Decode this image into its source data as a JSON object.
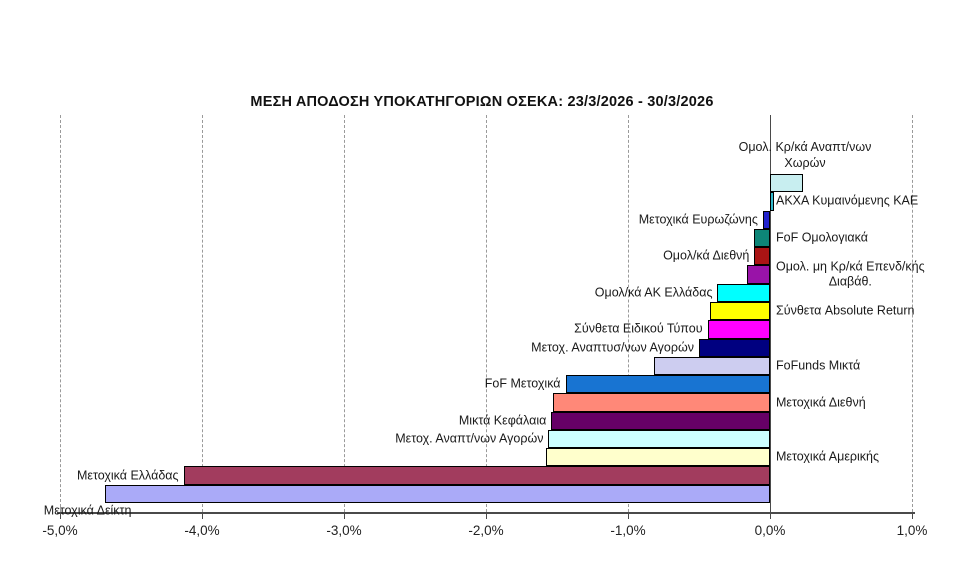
{
  "title": "ΜΕΣΗ ΑΠΟΔΟΣΗ ΥΠΟΚΑΤΗΓΟΡΙΩΝ ΟΣΕΚΑ: 23/3/2026 - 30/3/2026",
  "chart_data": {
    "type": "bar",
    "orientation": "horizontal",
    "title": "ΜΕΣΗ ΑΠΟΔΟΣΗ ΥΠΟΚΑΤΗΓΟΡΙΩΝ ΟΣΕΚΑ: 23/3/2026 - 30/3/2026",
    "value_unit": "%",
    "xlim": [
      -5.0,
      1.0
    ],
    "xticks": [
      -5,
      -4,
      -3,
      -2,
      -1,
      0,
      1
    ],
    "xtick_labels": [
      "-5,0%",
      "-4,0%",
      "-3,0%",
      "-2,0%",
      "-1,0%",
      "0,0%",
      "1,0%"
    ],
    "grid": "vertical-dashed",
    "legend": "none",
    "bars": [
      {
        "label": "Ομολ. Κρ/κά Αναπτ/νων\nΧωρών",
        "value": 0.23,
        "color": "#C8EEF0",
        "label_side": "above"
      },
      {
        "label": "ΑΚΧΑ Κυμαινόμενης ΚΑΕ",
        "value": 0.03,
        "color": "#33B9CC",
        "label_side": "right"
      },
      {
        "label": "Μετοχικά Ευρωζώνης",
        "value": -0.05,
        "color": "#2222CC",
        "label_side": "left"
      },
      {
        "label": "FoF Ομολογιακά",
        "value": -0.11,
        "color": "#0D8577",
        "label_side": "right"
      },
      {
        "label": "Ομολ/κά Διεθνή",
        "value": -0.11,
        "color": "#AA1414",
        "label_side": "left"
      },
      {
        "label": "Ομολ. μη Κρ/κά Επενδ/κής\nΔιαβάθ.",
        "value": -0.16,
        "color": "#9913A8",
        "label_side": "right"
      },
      {
        "label": "Ομολ/κά ΑΚ Ελλάδας",
        "value": -0.37,
        "color": "#00FFFF",
        "label_side": "left"
      },
      {
        "label": "Σύνθετα Absolute Return",
        "value": -0.42,
        "color": "#FFFF00",
        "label_side": "right"
      },
      {
        "label": "Σύνθετα Ειδικού Τύπου",
        "value": -0.44,
        "color": "#FF00FF",
        "label_side": "left"
      },
      {
        "label": "Μετοχ. Αναπτυσ/νων Αγορών",
        "value": -0.5,
        "color": "#000080",
        "label_side": "left"
      },
      {
        "label": "FoFunds Μικτά",
        "value": -0.82,
        "color": "#CDCDF0",
        "label_side": "right"
      },
      {
        "label": "FoF Μετοχικά",
        "value": -1.44,
        "color": "#1874D2",
        "label_side": "left"
      },
      {
        "label": "Μετοχικά Διεθνή",
        "value": -1.53,
        "color": "#FF8878",
        "label_side": "right"
      },
      {
        "label": "Μικτά Κεφάλαια",
        "value": -1.54,
        "color": "#660066",
        "label_side": "left"
      },
      {
        "label": "Μετοχ. Αναπτ/νων Αγορών",
        "value": -1.56,
        "color": "#CCFFFF",
        "label_side": "left"
      },
      {
        "label": "Μετοχικά Αμερικής",
        "value": -1.58,
        "color": "#FFFFCC",
        "label_side": "right"
      },
      {
        "label": "Μετοχικά Ελλάδας",
        "value": -4.13,
        "color": "#A23C5E",
        "label_side": "left"
      },
      {
        "label": "Μετοχικά Δείκτη",
        "value": -4.68,
        "color": "#AAAAF8",
        "label_side": "left-below"
      }
    ]
  },
  "colors": {
    "background": "#FFFFFF",
    "axis": "#4A4A4A",
    "grid": "#9A9A9A",
    "zero_line": "#4A4A4A",
    "text": "#1A1A1A",
    "bar_outline": "#000000"
  }
}
